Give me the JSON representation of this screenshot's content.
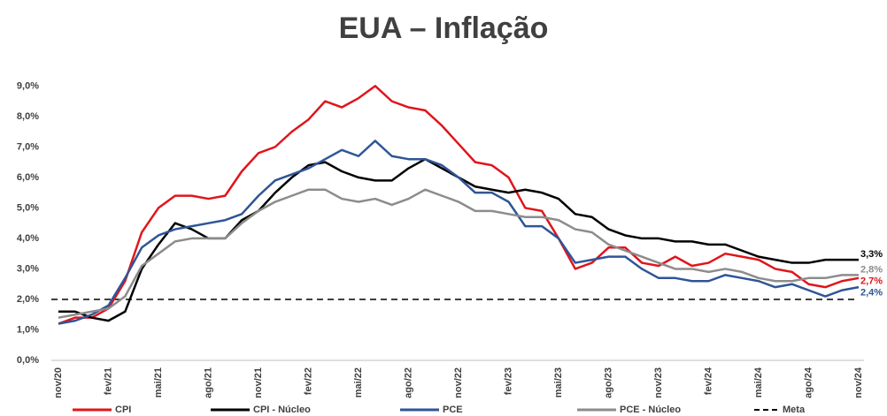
{
  "chart_data": {
    "type": "line",
    "title": "EUA – Inflação",
    "categories": [
      "nov/20",
      null,
      null,
      "fev/21",
      null,
      null,
      "mai/21",
      null,
      null,
      "ago/21",
      null,
      null,
      "nov/21",
      null,
      null,
      "fev/22",
      null,
      null,
      "mai/22",
      null,
      null,
      "ago/22",
      null,
      null,
      "nov/22",
      null,
      null,
      "fev/23",
      null,
      null,
      "mai/23",
      null,
      null,
      "ago/23",
      null,
      null,
      "nov/23",
      null,
      null,
      "fev/24",
      null,
      null,
      "mai/24",
      null,
      null,
      "ago/24",
      null,
      null,
      "nov/24"
    ],
    "series": [
      {
        "name": "CPI",
        "color": "#e0151b",
        "values": [
          1.2,
          1.4,
          1.4,
          1.7,
          2.6,
          4.2,
          5.0,
          5.4,
          5.4,
          5.3,
          5.4,
          6.2,
          6.8,
          7.0,
          7.5,
          7.9,
          8.5,
          8.3,
          8.6,
          9.0,
          8.5,
          8.3,
          8.2,
          7.7,
          7.1,
          6.5,
          6.4,
          6.0,
          5.0,
          4.9,
          4.0,
          3.0,
          3.2,
          3.7,
          3.7,
          3.2,
          3.1,
          3.4,
          3.1,
          3.2,
          3.5,
          3.4,
          3.3,
          3.0,
          2.9,
          2.5,
          2.4,
          2.6,
          2.7
        ],
        "value_labels": [
          null,
          null,
          null,
          null,
          null,
          null,
          null,
          null,
          null,
          null,
          null,
          null,
          null,
          null,
          null,
          null,
          null,
          null,
          null,
          null,
          null,
          null,
          null,
          null,
          null,
          null,
          null,
          null,
          null,
          null,
          null,
          null,
          null,
          null,
          null,
          null,
          null,
          null,
          null,
          null,
          null,
          null,
          null,
          null,
          null,
          null,
          null,
          null,
          "2,7%"
        ]
      },
      {
        "name": "CPI - Núcleo",
        "color": "#000000",
        "values": [
          1.6,
          1.6,
          1.4,
          1.3,
          1.6,
          3.0,
          3.8,
          4.5,
          4.3,
          4.0,
          4.0,
          4.6,
          4.9,
          5.5,
          6.0,
          6.4,
          6.5,
          6.2,
          6.0,
          5.9,
          5.9,
          6.3,
          6.6,
          6.3,
          6.0,
          5.7,
          5.6,
          5.5,
          5.6,
          5.5,
          5.3,
          4.8,
          4.7,
          4.3,
          4.1,
          4.0,
          4.0,
          3.9,
          3.9,
          3.8,
          3.8,
          3.6,
          3.4,
          3.3,
          3.2,
          3.2,
          3.3,
          3.3,
          3.3
        ],
        "value_labels": [
          null,
          null,
          null,
          null,
          null,
          null,
          null,
          null,
          null,
          null,
          null,
          null,
          null,
          null,
          null,
          null,
          null,
          null,
          null,
          null,
          null,
          null,
          null,
          null,
          null,
          null,
          null,
          null,
          null,
          null,
          null,
          null,
          null,
          null,
          null,
          null,
          null,
          null,
          null,
          null,
          null,
          null,
          null,
          null,
          null,
          null,
          null,
          null,
          "3,3%"
        ]
      },
      {
        "name": "PCE",
        "color": "#2f5597",
        "values": [
          1.2,
          1.3,
          1.5,
          1.8,
          2.7,
          3.7,
          4.1,
          4.3,
          4.4,
          4.5,
          4.6,
          4.8,
          5.4,
          5.9,
          6.1,
          6.3,
          6.6,
          6.9,
          6.7,
          7.2,
          6.7,
          6.6,
          6.6,
          6.4,
          6.0,
          5.5,
          5.5,
          5.2,
          4.4,
          4.4,
          4.0,
          3.2,
          3.3,
          3.4,
          3.4,
          3.0,
          2.7,
          2.7,
          2.6,
          2.6,
          2.8,
          2.7,
          2.6,
          2.4,
          2.5,
          2.3,
          2.1,
          2.3,
          2.4
        ],
        "value_labels": [
          null,
          null,
          null,
          null,
          null,
          null,
          null,
          null,
          null,
          null,
          null,
          null,
          null,
          null,
          null,
          null,
          null,
          null,
          null,
          null,
          null,
          null,
          null,
          null,
          null,
          null,
          null,
          null,
          null,
          null,
          null,
          null,
          null,
          null,
          null,
          null,
          null,
          null,
          null,
          null,
          null,
          null,
          null,
          null,
          null,
          null,
          null,
          null,
          "2,4%"
        ]
      },
      {
        "name": "PCE - Núcleo",
        "color": "#8c8c8c",
        "values": [
          1.4,
          1.5,
          1.6,
          1.7,
          2.1,
          3.1,
          3.5,
          3.9,
          4.0,
          4.0,
          4.0,
          4.5,
          4.9,
          5.2,
          5.4,
          5.6,
          5.6,
          5.3,
          5.2,
          5.3,
          5.1,
          5.3,
          5.6,
          5.4,
          5.2,
          4.9,
          4.9,
          4.8,
          4.7,
          4.7,
          4.6,
          4.3,
          4.2,
          3.8,
          3.6,
          3.4,
          3.2,
          3.0,
          3.0,
          2.9,
          3.0,
          2.9,
          2.7,
          2.6,
          2.6,
          2.7,
          2.7,
          2.8,
          2.8
        ],
        "value_labels": [
          null,
          null,
          null,
          null,
          null,
          null,
          null,
          null,
          null,
          null,
          null,
          null,
          null,
          null,
          null,
          null,
          null,
          null,
          null,
          null,
          null,
          null,
          null,
          null,
          null,
          null,
          null,
          null,
          null,
          null,
          null,
          null,
          null,
          null,
          null,
          null,
          null,
          null,
          null,
          null,
          null,
          null,
          null,
          null,
          null,
          null,
          null,
          null,
          "2,8%"
        ]
      }
    ],
    "reference_line": {
      "name": "Meta",
      "value": 2.0,
      "color": "#000000"
    },
    "ylim": [
      0,
      9.3
    ],
    "yticks": [
      {
        "value": 0,
        "label": "0,0%"
      },
      {
        "value": 1,
        "label": "1,0%"
      },
      {
        "value": 2,
        "label": "2,0%"
      },
      {
        "value": 3,
        "label": "3,0%"
      },
      {
        "value": 4,
        "label": "4,0%"
      },
      {
        "value": 5,
        "label": "5,0%"
      },
      {
        "value": 6,
        "label": "6,0%"
      },
      {
        "value": 7,
        "label": "7,0%"
      },
      {
        "value": 8,
        "label": "8,0%"
      },
      {
        "value": 9,
        "label": "9,0%"
      }
    ],
    "grid": false
  }
}
